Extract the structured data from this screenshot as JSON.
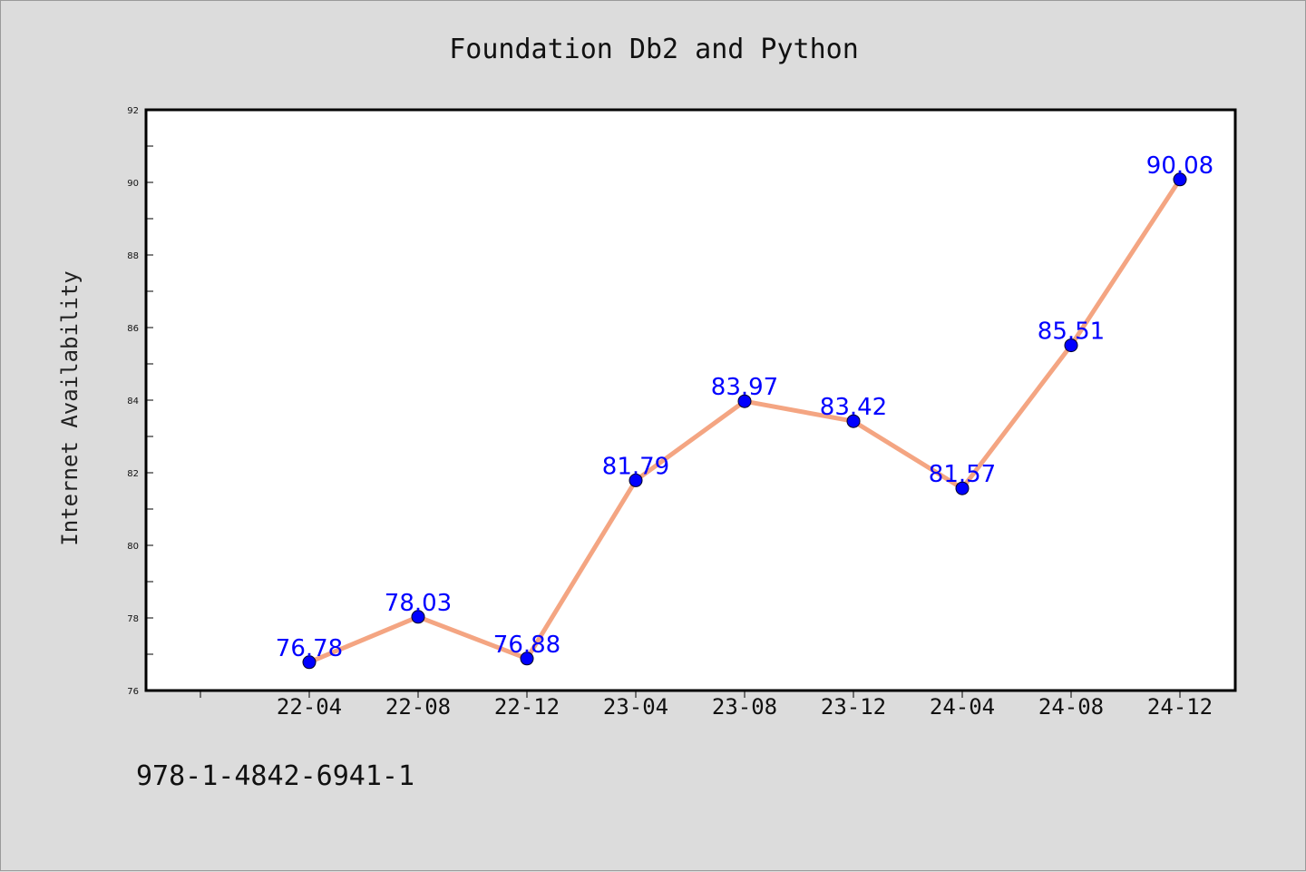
{
  "chart_data": {
    "type": "line",
    "title": "Foundation Db2 and Python",
    "xlabel": "",
    "ylabel": "Internet Availability",
    "categories": [
      "22-04",
      "22-08",
      "22-12",
      "23-04",
      "23-08",
      "23-12",
      "24-04",
      "24-08",
      "24-12"
    ],
    "series": [
      {
        "values": [
          76.78,
          78.03,
          76.88,
          81.79,
          83.97,
          83.42,
          81.57,
          85.51,
          90.08
        ],
        "data_labels": [
          "76.78",
          "78.03",
          "76.88",
          "81.79",
          "83.97",
          "83.42",
          "81.57",
          "85.51",
          "90.08"
        ]
      }
    ],
    "ylim": [
      76,
      92
    ],
    "yticks": [
      76,
      78,
      80,
      82,
      84,
      86,
      88,
      90,
      92
    ],
    "ytick_labels": [
      "76",
      "78",
      "80",
      "82",
      "84",
      "86",
      "88",
      "90",
      "92"
    ],
    "grid": false,
    "line_color": "#f4a582",
    "marker_color": "#0000ff",
    "label_color": "#0000ff",
    "background_color": "#dcdcdc",
    "plot_background": "#ffffff"
  },
  "footer": {
    "isbn": "978-1-4842-6941-1"
  }
}
